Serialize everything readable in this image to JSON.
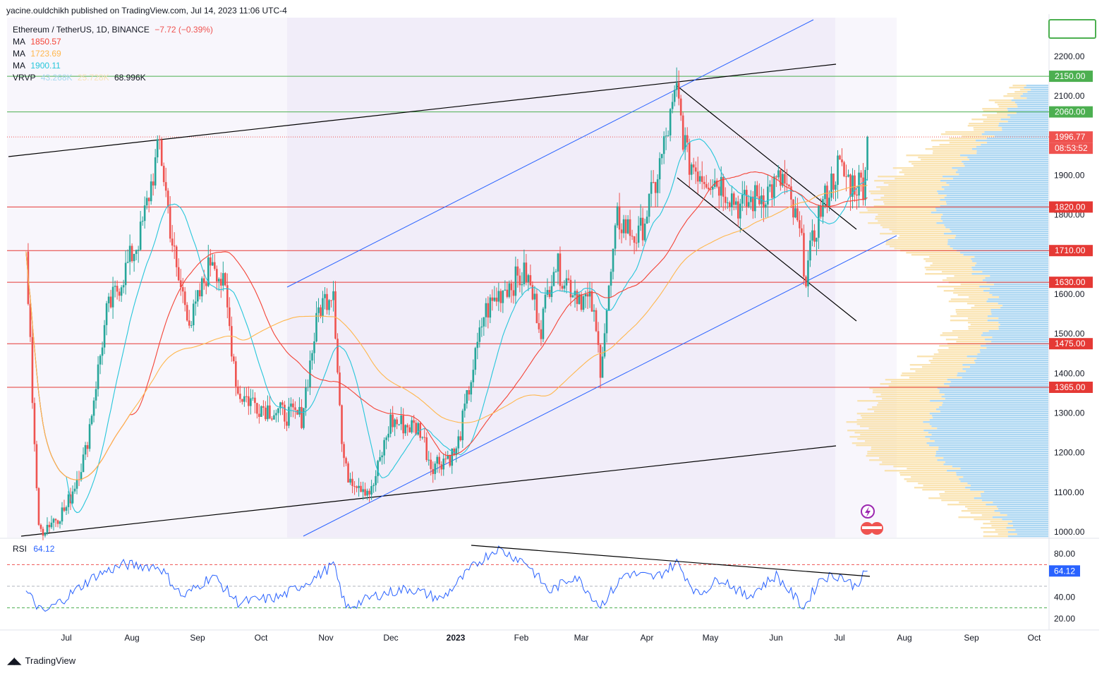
{
  "publisher": "yacine.ouldchikh published on TradingView.com, Jul 14, 2023 11:06 UTC-4",
  "legend": {
    "symbol": "Ethereum / TetherUS, 1D, BINANCE",
    "change": "−7.72 (−0.39%)",
    "ma1_label": "MA",
    "ma1_value": "1850.57",
    "ma2_label": "MA",
    "ma2_value": "1723.69",
    "ma3_label": "MA",
    "ma3_value": "1900.11",
    "vrvp_label": "VRVP",
    "vrvp_v1": "43.268K",
    "vrvp_v2": "25.728K",
    "vrvp_v3": "68.996K"
  },
  "rsi_legend": {
    "label": "RSI",
    "value": "64.12"
  },
  "footer": {
    "brand": "TradingView"
  },
  "colors": {
    "up": "#26a69a",
    "down": "#ef5350",
    "ma1": "#f44336",
    "ma2": "#ffb74d",
    "ma3": "#26c6da",
    "resistance": "#4caf50",
    "support": "#e53935",
    "channel": "#2962ff",
    "trend": "#000000",
    "rsi": "#2962ff"
  },
  "chart_data": {
    "type": "line",
    "title": "Ethereum / TetherUS, 1D, BINANCE",
    "y_axis": {
      "ticks": [
        2200,
        2100,
        1900,
        1800,
        1600,
        1500,
        1400,
        1300,
        1200,
        1100,
        1000
      ],
      "ylim": [
        975,
        2300
      ]
    },
    "x_axis": {
      "ticks": [
        "Jul",
        "Aug",
        "Sep",
        "Oct",
        "Nov",
        "Dec",
        "2023",
        "Feb",
        "Mar",
        "Apr",
        "May",
        "Jun",
        "Jul",
        "Aug",
        "Sep",
        "Oct"
      ]
    },
    "price_tags": {
      "resistance": [
        "2150.00",
        "2060.00"
      ],
      "support": [
        "1820.00",
        "1710.00",
        "1630.00",
        "1475.00",
        "1365.00"
      ],
      "last": "1996.77",
      "countdown": "08:53:52"
    },
    "series": [
      {
        "name": "Ethereum / TetherUS",
        "points": [
          [
            "2022-06-12",
            1700
          ],
          [
            "2022-06-18",
            1000
          ],
          [
            "2022-07-01",
            1060
          ],
          [
            "2022-07-10",
            1200
          ],
          [
            "2022-07-20",
            1550
          ],
          [
            "2022-07-28",
            1650
          ],
          [
            "2022-08-05",
            1750
          ],
          [
            "2022-08-14",
            1980
          ],
          [
            "2022-08-22",
            1650
          ],
          [
            "2022-08-29",
            1530
          ],
          [
            "2022-09-08",
            1700
          ],
          [
            "2022-09-14",
            1600
          ],
          [
            "2022-09-20",
            1350
          ],
          [
            "2022-09-30",
            1320
          ],
          [
            "2022-10-10",
            1300
          ],
          [
            "2022-10-20",
            1290
          ],
          [
            "2022-10-28",
            1560
          ],
          [
            "2022-11-04",
            1620
          ],
          [
            "2022-11-08",
            1220
          ],
          [
            "2022-11-10",
            1150
          ],
          [
            "2022-11-22",
            1100
          ],
          [
            "2022-12-01",
            1280
          ],
          [
            "2022-12-15",
            1260
          ],
          [
            "2022-12-20",
            1170
          ],
          [
            "2023-01-01",
            1200
          ],
          [
            "2023-01-14",
            1550
          ],
          [
            "2023-01-24",
            1620
          ],
          [
            "2023-02-03",
            1650
          ],
          [
            "2023-02-10",
            1520
          ],
          [
            "2023-02-16",
            1680
          ],
          [
            "2023-02-24",
            1620
          ],
          [
            "2023-03-06",
            1570
          ],
          [
            "2023-03-10",
            1420
          ],
          [
            "2023-03-18",
            1790
          ],
          [
            "2023-03-28",
            1740
          ],
          [
            "2023-04-05",
            1880
          ],
          [
            "2023-04-15",
            2110
          ],
          [
            "2023-04-20",
            1940
          ],
          [
            "2023-04-28",
            1900
          ],
          [
            "2023-05-06",
            1880
          ],
          [
            "2023-05-15",
            1820
          ],
          [
            "2023-05-28",
            1860
          ],
          [
            "2023-06-04",
            1890
          ],
          [
            "2023-06-12",
            1750
          ],
          [
            "2023-06-15",
            1650
          ],
          [
            "2023-06-21",
            1800
          ],
          [
            "2023-06-30",
            1920
          ],
          [
            "2023-07-06",
            1880
          ],
          [
            "2023-07-12",
            1880
          ],
          [
            "2023-07-14",
            1997
          ]
        ]
      },
      {
        "name": "MA",
        "last": 1850.57
      },
      {
        "name": "MA",
        "last": 1723.69
      },
      {
        "name": "MA",
        "last": 1900.11
      }
    ],
    "rsi": {
      "name": "RSI",
      "last": 64.12,
      "levels": [
        70,
        50,
        30
      ],
      "ticks": [
        80,
        40,
        20
      ],
      "points": [
        [
          "2022-06-12",
          45
        ],
        [
          "2022-06-20",
          25
        ],
        [
          "2022-07-01",
          40
        ],
        [
          "2022-07-15",
          60
        ],
        [
          "2022-07-28",
          70
        ],
        [
          "2022-08-14",
          68
        ],
        [
          "2022-08-25",
          40
        ],
        [
          "2022-09-08",
          60
        ],
        [
          "2022-09-20",
          35
        ],
        [
          "2022-10-10",
          40
        ],
        [
          "2022-10-28",
          60
        ],
        [
          "2022-11-04",
          70
        ],
        [
          "2022-11-10",
          30
        ],
        [
          "2022-11-25",
          42
        ],
        [
          "2022-12-10",
          48
        ],
        [
          "2022-12-25",
          38
        ],
        [
          "2023-01-10",
          70
        ],
        [
          "2023-01-20",
          85
        ],
        [
          "2023-02-03",
          72
        ],
        [
          "2023-02-14",
          45
        ],
        [
          "2023-02-26",
          60
        ],
        [
          "2023-03-10",
          32
        ],
        [
          "2023-03-22",
          62
        ],
        [
          "2023-04-05",
          58
        ],
        [
          "2023-04-15",
          72
        ],
        [
          "2023-04-25",
          42
        ],
        [
          "2023-05-06",
          58
        ],
        [
          "2023-05-18",
          40
        ],
        [
          "2023-06-01",
          60
        ],
        [
          "2023-06-14",
          30
        ],
        [
          "2023-06-22",
          58
        ],
        [
          "2023-07-01",
          60
        ],
        [
          "2023-07-08",
          50
        ],
        [
          "2023-07-14",
          64
        ]
      ]
    }
  }
}
